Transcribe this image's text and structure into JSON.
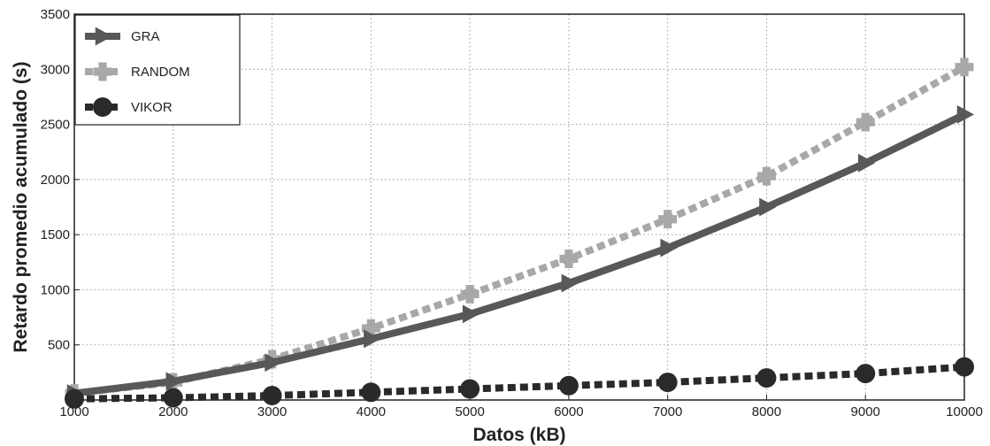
{
  "chart_data": {
    "type": "line",
    "xlabel": "Datos (kB)",
    "ylabel": "Retardo promedio acumulado (s)",
    "xlim": [
      1000,
      10000
    ],
    "ylim": [
      0,
      3500
    ],
    "xticks": [
      1000,
      2000,
      3000,
      4000,
      5000,
      6000,
      7000,
      8000,
      9000,
      10000
    ],
    "yticks": [
      500,
      1000,
      1500,
      2000,
      2500,
      3000,
      3500
    ],
    "grid": true,
    "legend_position": "top-left",
    "x": [
      1000,
      2000,
      3000,
      4000,
      5000,
      6000,
      7000,
      8000,
      9000,
      10000
    ],
    "series": [
      {
        "name": "GRA",
        "color": "#585858",
        "style": "solid",
        "marker": "triangle-right",
        "values": [
          60,
          170,
          340,
          555,
          780,
          1060,
          1380,
          1750,
          2150,
          2590
        ]
      },
      {
        "name": "RANDOM",
        "color": "#a8a8a8",
        "style": "dashed",
        "marker": "square",
        "values": [
          60,
          160,
          370,
          650,
          960,
          1280,
          1640,
          2030,
          2520,
          3020
        ]
      },
      {
        "name": "VIKOR",
        "color": "#2a2a2a",
        "style": "dashed",
        "marker": "circle",
        "values": [
          10,
          20,
          40,
          70,
          100,
          130,
          160,
          200,
          240,
          300
        ]
      }
    ]
  }
}
